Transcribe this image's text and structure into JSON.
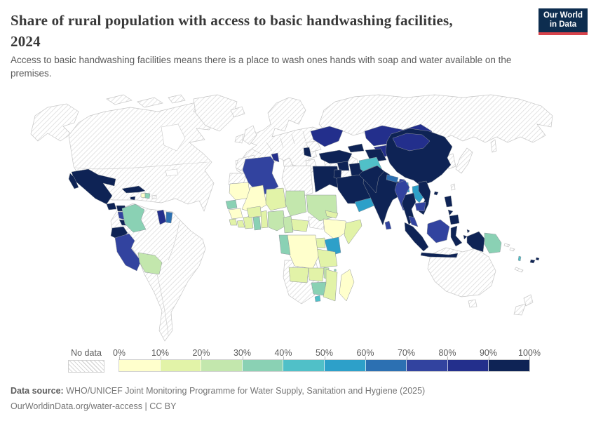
{
  "header": {
    "title_line1": "Share of rural population with access to basic handwashing facilities,",
    "title_line2": "2024",
    "subtitle": "Access to basic handwashing facilities means there is a place to wash ones hands with soap and water available on the premises.",
    "logo": {
      "line1": "Our World",
      "line2": "in Data",
      "bg_color": "#0d2d4f",
      "accent_color": "#d8434b"
    }
  },
  "legend": {
    "no_data_label": "No data",
    "tick_labels": [
      "0%",
      "10%",
      "20%",
      "30%",
      "40%",
      "50%",
      "60%",
      "70%",
      "80%",
      "90%",
      "100%"
    ]
  },
  "footer": {
    "source_label": "Data source:",
    "source_text": " WHO/UNICEF Joint Monitoring Programme for Water Supply, Sanitation and Hygiene (2025)",
    "attribution": "OurWorldinData.org/water-access | CC BY"
  },
  "chart_data": {
    "type": "choropleth_map",
    "title": "Share of rural population with access to basic handwashing facilities",
    "year": "2024",
    "unit": "share of rural population (%)",
    "bins": [
      "0-10%",
      "10-20%",
      "20-30%",
      "30-40%",
      "40-50%",
      "50-60%",
      "60-70%",
      "70-80%",
      "80-90%",
      "90-100%"
    ],
    "legend_colors": [
      "#ffffcc",
      "#e2f3a8",
      "#c3e7ad",
      "#8ad1b4",
      "#50c0c8",
      "#2da0c9",
      "#2c70b2",
      "#32439f",
      "#232f8c",
      "#0e2355"
    ],
    "regions": {
      "Mexico": 10,
      "Guatemala": 10,
      "Honduras": 10,
      "Nicaragua": 8,
      "Costa Rica": 10,
      "Panama": 8,
      "Cuba": 10,
      "Jamaica": 10,
      "Haiti": 1,
      "Dominican Republic": 4,
      "Colombia": 4,
      "Ecuador": 10,
      "Peru": 8,
      "Bolivia": 3,
      "Guyana": 9,
      "Suriname": 7,
      "Ukraine": 9,
      "Serbia": 10,
      "Turkey": 10,
      "Azerbaijan": 10,
      "Syria": 10,
      "Iraq": 10,
      "Jordan": 10,
      "Saudi Arabia": 10,
      "Yemen": 6,
      "Egypt": 10,
      "Tunisia": 9,
      "Algeria": 8,
      "Mauritania": 1,
      "Mali": 1,
      "Niger": 2,
      "Chad": 3,
      "Sudan": 3,
      "Eritrea": 2,
      "Senegal": 4,
      "Guinea": 1,
      "Sierra Leone": 2,
      "Liberia": 2,
      "Cote d'Ivoire": 2,
      "Ghana": 4,
      "Burkina Faso": 2,
      "Benin": 2,
      "Nigeria": 3,
      "Cameroon": 3,
      "Central African Republic": 2,
      "Ethiopia": 1,
      "Somalia": 2,
      "Kenya": 6,
      "Uganda": 2,
      "Tanzania": 2,
      "DR Congo": 1,
      "Gabon": 4,
      "Angola": 2,
      "Zambia": 2,
      "Malawi": 3,
      "Zimbabwe": 4,
      "Mozambique": 2,
      "Madagascar": 1,
      "Lesotho": 5,
      "Comoros": 4,
      "Kazakhstan": 9,
      "Uzbekistan": 9,
      "Turkmenistan": 10,
      "Kyrgyzstan": 9,
      "Tajikistan": 5,
      "Afghanistan": 5,
      "Pakistan": 10,
      "India": 10,
      "Nepal": 7,
      "Bhutan": 8,
      "Bangladesh": 6,
      "Sri Lanka": 8,
      "China": 10,
      "Mongolia": 9,
      "Myanmar": 8,
      "Thailand": 10,
      "Laos": 6,
      "Vietnam": 10,
      "Cambodia": 8,
      "Malaysia": 8,
      "Philippines": 10,
      "Indonesia": 10,
      "Hainan": 10,
      "Papua New Guinea": 4,
      "Fiji": 10,
      "Vanuatu": 5
    },
    "no_data_regions": [
      "United States",
      "Canada",
      "Alaska",
      "Greenland",
      "Iceland",
      "Europe (most countries)",
      "Russia",
      "Brazil",
      "Venezuela",
      "Argentina",
      "Chile",
      "Paraguay",
      "Uruguay",
      "French Guiana",
      "Puerto Rico",
      "Morocco",
      "Western Sahara",
      "Libya",
      "South Sudan",
      "South Africa",
      "Namibia",
      "Botswana",
      "Iran",
      "Oman",
      "United Arab Emirates",
      "Japan",
      "Korea",
      "Taiwan",
      "Sakhalin",
      "Australia",
      "New Zealand",
      "Solomon Islands",
      "New Caledonia"
    ]
  }
}
